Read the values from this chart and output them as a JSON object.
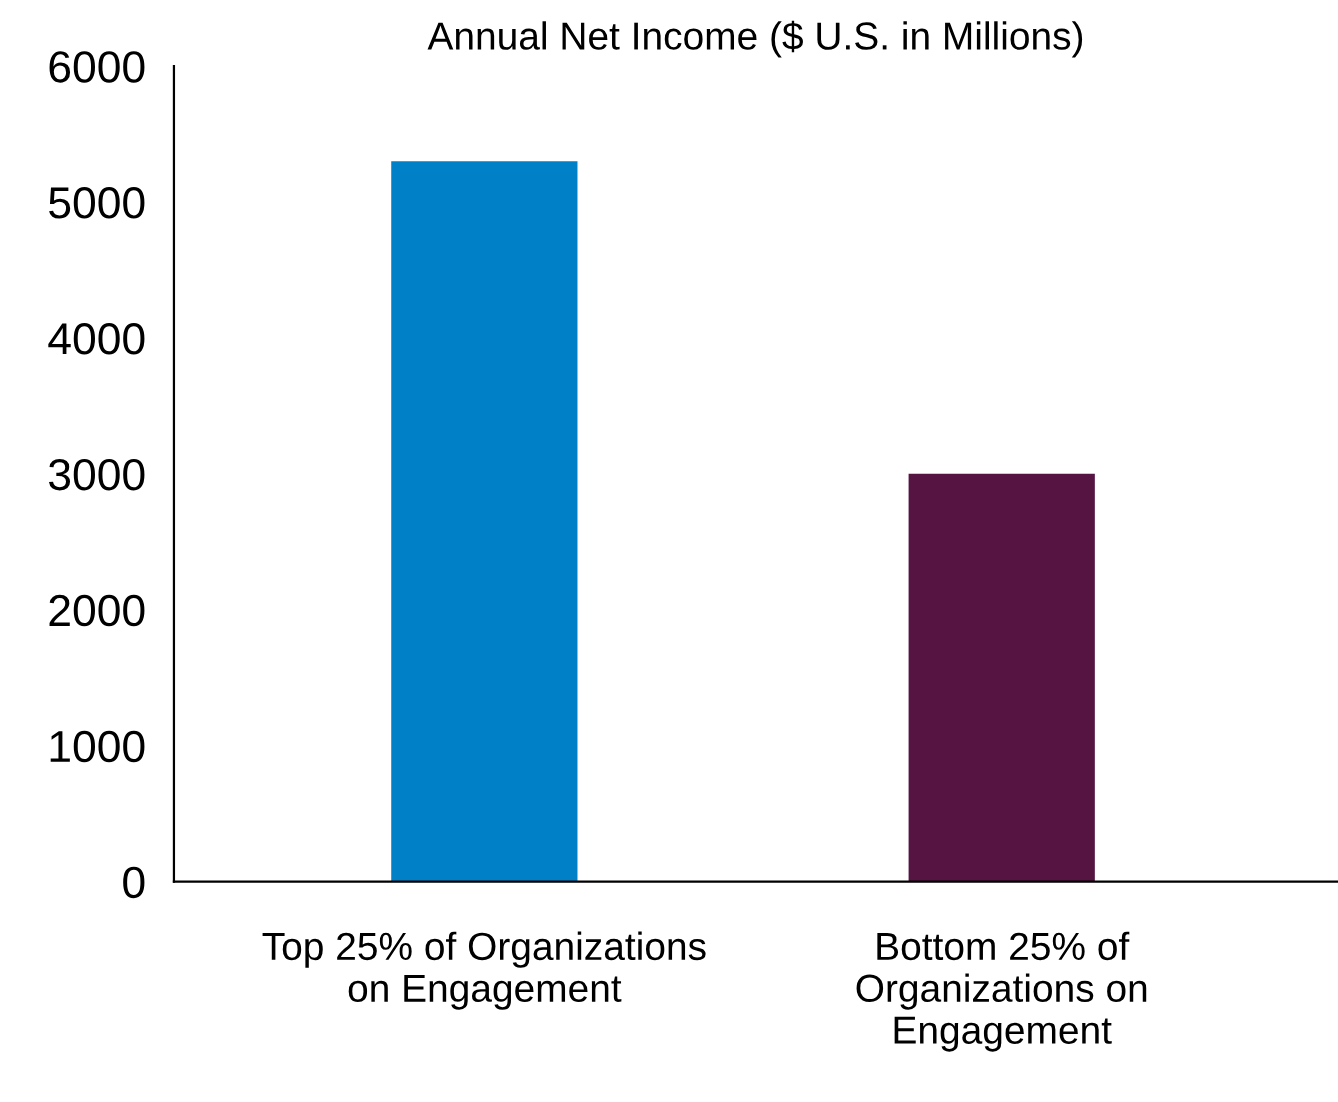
{
  "chart_data": {
    "type": "bar",
    "title": "Annual Net Income ($ U.S. in Millions)",
    "categories": [
      "Top 25% of Organizations\non Engagement",
      "Bottom 25% of\nOrganizations on\nEngagement"
    ],
    "values": [
      5300,
      3000
    ],
    "colors": [
      "#0080c6",
      "#561443"
    ],
    "ylim": [
      0,
      6000
    ],
    "yticks": [
      0,
      1000,
      2000,
      3000,
      4000,
      5000,
      6000
    ],
    "grid": false,
    "legend": false
  }
}
